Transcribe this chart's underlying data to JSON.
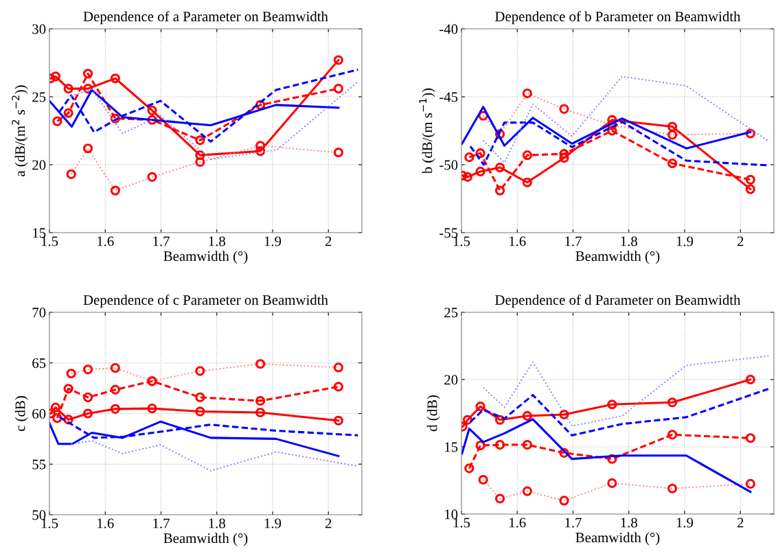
{
  "chart_data": [
    {
      "type": "line",
      "title": "Dependence of a Parameter on Beamwidth",
      "xlabel": "Beamwidth (°)",
      "ylabel": "a (dB/(m$^{2}$ s$^{−2}$))",
      "xlim": [
        1.5,
        2.06
      ],
      "xticks": [
        1.5,
        1.6,
        1.7,
        1.8,
        1.9,
        2
      ],
      "ylim": [
        15,
        30
      ],
      "yticks": [
        15,
        20,
        25,
        30
      ],
      "grid": true,
      "series": [
        {
          "color": "#ff0000",
          "line_style": "solid",
          "marker": "circle",
          "x": [
            1.502,
            1.511,
            1.534,
            1.569,
            1.618,
            1.684,
            1.77,
            1.878,
            2.018
          ],
          "values": [
            26.35,
            26.5,
            25.6,
            25.6,
            26.35,
            24.0,
            20.7,
            21.0,
            27.7
          ]
        },
        {
          "color": "#ff0000",
          "line_style": "dashed",
          "marker": "circle",
          "x": [
            1.514,
            1.534,
            1.569,
            1.618,
            1.684,
            1.77,
            1.878,
            2.018
          ],
          "values": [
            23.2,
            23.8,
            26.7,
            23.4,
            23.3,
            21.8,
            24.4,
            25.6
          ]
        },
        {
          "color": "#ff8080",
          "line_style": "dotted",
          "marker": "circle",
          "x": [
            1.539,
            1.569,
            1.618,
            1.684,
            1.77,
            1.878,
            2.018
          ],
          "values": [
            19.3,
            21.2,
            18.1,
            19.1,
            20.2,
            21.4,
            20.9
          ]
        },
        {
          "color": "#0000ff",
          "line_style": "solid",
          "marker": "none",
          "x": [
            1.5,
            1.54,
            1.576,
            1.631,
            1.789,
            1.906,
            2.018
          ],
          "values": [
            24.7,
            22.8,
            25.5,
            23.5,
            22.9,
            24.4,
            24.2
          ]
        },
        {
          "color": "#0000ff",
          "line_style": "dashed",
          "marker": "none",
          "x": [
            1.518,
            1.539,
            1.58,
            1.631,
            1.699,
            1.789,
            1.906,
            2.053
          ],
          "values": [
            23.9,
            25.1,
            22.4,
            23.6,
            24.7,
            21.7,
            25.5,
            27.0
          ]
        },
        {
          "color": "#8080ff",
          "line_style": "dotted",
          "marker": "none",
          "x": [
            1.539,
            1.576,
            1.631,
            1.699,
            1.789,
            1.908,
            2.053
          ],
          "values": [
            25.05,
            25.55,
            22.3,
            23.6,
            20.4,
            21.1,
            26.1
          ]
        }
      ]
    },
    {
      "type": "line",
      "title": "Dependence of b Parameter on Beamwidth",
      "xlabel": "Beamwidth (°)",
      "ylabel": "b (dB/(m s$^{−1}$))",
      "xlim": [
        1.5,
        2.06
      ],
      "xticks": [
        1.5,
        1.6,
        1.7,
        1.8,
        1.9,
        2
      ],
      "ylim": [
        -55,
        -40
      ],
      "yticks": [
        -55,
        -50,
        -45,
        -40
      ],
      "grid": true,
      "series": [
        {
          "color": "#ff0000",
          "line_style": "solid",
          "marker": "circle",
          "x": [
            1.502,
            1.511,
            1.534,
            1.569,
            1.618,
            1.684,
            1.77,
            1.878,
            2.018
          ],
          "values": [
            -50.8,
            -50.9,
            -50.5,
            -50.2,
            -51.3,
            -49.5,
            -46.7,
            -47.2,
            -51.8
          ]
        },
        {
          "color": "#ff0000",
          "line_style": "dashed",
          "marker": "circle",
          "x": [
            1.514,
            1.534,
            1.569,
            1.618,
            1.684,
            1.77,
            1.878,
            2.018
          ],
          "values": [
            -49.45,
            -49.15,
            -51.9,
            -49.3,
            -49.2,
            -47.5,
            -49.9,
            -51.1
          ]
        },
        {
          "color": "#ff8080",
          "line_style": "dotted",
          "marker": "circle",
          "x": [
            1.539,
            1.569,
            1.618,
            1.684,
            1.77,
            1.878,
            2.018
          ],
          "values": [
            -46.4,
            -47.75,
            -44.75,
            -45.9,
            -47.1,
            -47.8,
            -47.7
          ]
        },
        {
          "color": "#0000ff",
          "line_style": "solid",
          "marker": "none",
          "x": [
            1.501,
            1.539,
            1.577,
            1.628,
            1.698,
            1.788,
            1.903,
            2.018
          ],
          "values": [
            -48.45,
            -45.75,
            -48.6,
            -46.55,
            -48.45,
            -46.6,
            -48.8,
            -47.6
          ]
        },
        {
          "color": "#0000ff",
          "line_style": "dashed",
          "marker": "none",
          "x": [
            1.516,
            1.54,
            1.577,
            1.628,
            1.698,
            1.788,
            1.903,
            2.05
          ],
          "values": [
            -48.65,
            -50.0,
            -46.9,
            -46.9,
            -48.7,
            -46.85,
            -49.7,
            -50.05
          ]
        },
        {
          "color": "#8080ff",
          "line_style": "dotted",
          "marker": "none",
          "x": [
            1.539,
            1.577,
            1.628,
            1.698,
            1.788,
            1.903,
            2.05
          ],
          "values": [
            -48.2,
            -49.85,
            -45.55,
            -47.9,
            -43.5,
            -44.2,
            -48.25
          ]
        }
      ]
    },
    {
      "type": "line",
      "title": "Dependence of c Parameter on Beamwidth",
      "xlabel": "Beamwidth (°)",
      "ylabel": "c (dB)",
      "xlim": [
        1.5,
        2.06
      ],
      "xticks": [
        1.5,
        1.6,
        1.7,
        1.8,
        1.9,
        2
      ],
      "ylim": [
        50,
        70
      ],
      "yticks": [
        50,
        55,
        60,
        65,
        70
      ],
      "grid": true,
      "series": [
        {
          "color": "#ff0000",
          "line_style": "solid",
          "marker": "circle",
          "x": [
            1.502,
            1.511,
            1.534,
            1.569,
            1.618,
            1.684,
            1.77,
            1.878,
            2.018
          ],
          "values": [
            60.0,
            60.6,
            59.4,
            60.0,
            60.45,
            60.5,
            60.2,
            60.1,
            59.3
          ]
        },
        {
          "color": "#ff0000",
          "line_style": "dashed",
          "marker": "circle",
          "x": [
            1.514,
            1.534,
            1.569,
            1.618,
            1.684,
            1.77,
            1.878,
            2.018
          ],
          "values": [
            59.55,
            62.45,
            61.6,
            62.35,
            63.2,
            61.6,
            61.25,
            62.65
          ]
        },
        {
          "color": "#ff8080",
          "line_style": "dotted",
          "marker": "circle",
          "x": [
            1.539,
            1.569,
            1.618,
            1.684,
            1.77,
            1.878,
            2.018
          ],
          "values": [
            63.95,
            64.35,
            64.5,
            63.2,
            64.2,
            64.9,
            64.55
          ]
        },
        {
          "color": "#0000ff",
          "line_style": "solid",
          "marker": "none",
          "x": [
            1.5,
            1.516,
            1.541,
            1.576,
            1.631,
            1.699,
            1.789,
            1.906,
            2.018
          ],
          "values": [
            59.05,
            57.0,
            57.0,
            58.1,
            57.6,
            59.2,
            57.6,
            57.5,
            55.8
          ]
        },
        {
          "color": "#0000ff",
          "line_style": "dashed",
          "marker": "none",
          "x": [
            1.518,
            1.58,
            1.631,
            1.699,
            1.789,
            1.906,
            2.053
          ],
          "values": [
            59.65,
            57.6,
            57.7,
            58.2,
            58.9,
            58.3,
            57.85
          ]
        },
        {
          "color": "#8080ff",
          "line_style": "dotted",
          "marker": "none",
          "x": [
            1.539,
            1.576,
            1.631,
            1.699,
            1.789,
            1.906,
            2.053
          ],
          "values": [
            57.0,
            57.3,
            56.05,
            56.9,
            54.35,
            56.2,
            54.8
          ]
        }
      ]
    },
    {
      "type": "line",
      "title": "Dependence of d Parameter on Beamwidth",
      "xlabel": "Beamwidth (°)",
      "ylabel": "d (dB)",
      "xlim": [
        1.5,
        2.06
      ],
      "xticks": [
        1.5,
        1.6,
        1.7,
        1.8,
        1.9,
        2
      ],
      "ylim": [
        10,
        25
      ],
      "yticks": [
        10,
        15,
        20,
        25
      ],
      "grid": true,
      "series": [
        {
          "color": "#ff0000",
          "line_style": "solid",
          "marker": "circle",
          "x": [
            1.502,
            1.511,
            1.534,
            1.569,
            1.618,
            1.684,
            1.77,
            1.878,
            2.018
          ],
          "values": [
            16.5,
            17.0,
            18.0,
            17.0,
            17.3,
            17.4,
            18.15,
            18.3,
            20.0
          ]
        },
        {
          "color": "#ff0000",
          "line_style": "dashed",
          "marker": "circle",
          "x": [
            1.514,
            1.534,
            1.569,
            1.618,
            1.684,
            1.77,
            1.878,
            2.018
          ],
          "values": [
            13.4,
            15.1,
            15.15,
            15.15,
            14.55,
            14.1,
            15.9,
            15.65
          ]
        },
        {
          "color": "#ff8080",
          "line_style": "dotted",
          "marker": "circle",
          "x": [
            1.539,
            1.569,
            1.618,
            1.684,
            1.77,
            1.878,
            2.018
          ],
          "values": [
            12.55,
            11.15,
            11.7,
            11.0,
            12.3,
            11.9,
            12.25
          ]
        },
        {
          "color": "#0000ff",
          "line_style": "solid",
          "marker": "none",
          "x": [
            1.501,
            1.514,
            1.539,
            1.577,
            1.628,
            1.698,
            1.788,
            1.903,
            2.018
          ],
          "values": [
            14.5,
            16.35,
            15.35,
            16.0,
            17.05,
            14.1,
            14.35,
            14.35,
            11.65
          ]
        },
        {
          "color": "#0000ff",
          "line_style": "dashed",
          "marker": "none",
          "x": [
            1.516,
            1.539,
            1.577,
            1.628,
            1.698,
            1.788,
            1.903,
            2.05
          ],
          "values": [
            16.85,
            17.75,
            17.1,
            18.85,
            15.85,
            16.7,
            17.2,
            19.3
          ]
        },
        {
          "color": "#8080ff",
          "line_style": "dotted",
          "marker": "none",
          "x": [
            1.539,
            1.577,
            1.628,
            1.698,
            1.788,
            1.903,
            2.05
          ],
          "values": [
            19.4,
            17.95,
            21.3,
            16.55,
            17.3,
            21.05,
            21.75
          ]
        }
      ]
    }
  ]
}
